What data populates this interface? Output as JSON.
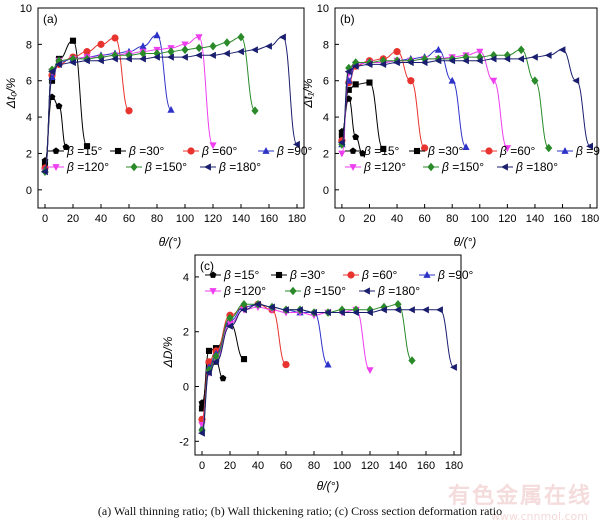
{
  "figure_caption": "(a)  Wall  thinning  ratio;  (b)  Wall  thickening  ratio; (c) Cross section deformation ratio",
  "watermark": "有色金属在线",
  "watermark_url": "www.cnnmol.com",
  "legend_labels": [
    "β =15°",
    "β =30°",
    "β =60°",
    "β =90°",
    "β =120°",
    "β =150°",
    "β =180°"
  ],
  "series_style": [
    {
      "color": "#000000",
      "marker": "pentagon"
    },
    {
      "color": "#000000",
      "marker": "square"
    },
    {
      "color": "#e8332e",
      "marker": "circle"
    },
    {
      "color": "#2e33c8",
      "marker": "triangle-up"
    },
    {
      "color": "#ee3ef0",
      "marker": "triangle-down"
    },
    {
      "color": "#2a8a2a",
      "marker": "diamond"
    },
    {
      "color": "#1a1e6e",
      "marker": "triangle-left"
    }
  ],
  "chart_data": [
    {
      "type": "line",
      "panel_label": "(a)",
      "xlabel": "θ/(°)",
      "ylabel": "Δt₀/%",
      "xlim": [
        -5,
        185
      ],
      "ylim": [
        -1,
        10
      ],
      "xticks": [
        0,
        20,
        40,
        60,
        80,
        100,
        120,
        140,
        160,
        180
      ],
      "yticks": [
        0,
        2,
        4,
        6,
        8,
        10
      ],
      "series": [
        {
          "name": "β =15°",
          "x": [
            0,
            5,
            10,
            15
          ],
          "y": [
            1.6,
            5.1,
            4.6,
            2.35
          ]
        },
        {
          "name": "β =30°",
          "x": [
            0,
            5,
            10,
            20,
            30
          ],
          "y": [
            1.4,
            6.0,
            7.2,
            8.2,
            2.4
          ]
        },
        {
          "name": "β =60°",
          "x": [
            0,
            5,
            10,
            20,
            30,
            40,
            50,
            60
          ],
          "y": [
            1.2,
            6.3,
            6.9,
            7.3,
            7.6,
            8.0,
            8.35,
            4.35
          ]
        },
        {
          "name": "β =90°",
          "x": [
            0,
            5,
            10,
            20,
            30,
            40,
            50,
            60,
            70,
            80,
            90
          ],
          "y": [
            1.1,
            6.2,
            7.0,
            7.2,
            7.3,
            7.4,
            7.5,
            7.6,
            7.9,
            8.5,
            4.4
          ]
        },
        {
          "name": "β =120°",
          "x": [
            0,
            5,
            10,
            20,
            30,
            40,
            50,
            60,
            70,
            80,
            90,
            100,
            110,
            120
          ],
          "y": [
            1.0,
            6.5,
            7.1,
            7.2,
            7.3,
            7.3,
            7.4,
            7.5,
            7.6,
            7.7,
            7.8,
            8.0,
            8.4,
            2.45
          ]
        },
        {
          "name": "β =150°",
          "x": [
            0,
            5,
            10,
            20,
            30,
            40,
            50,
            60,
            70,
            80,
            90,
            100,
            110,
            120,
            130,
            140,
            150
          ],
          "y": [
            1.0,
            6.6,
            7.1,
            7.2,
            7.2,
            7.3,
            7.4,
            7.4,
            7.5,
            7.5,
            7.6,
            7.7,
            7.8,
            7.9,
            8.1,
            8.4,
            4.35
          ]
        },
        {
          "name": "β =180°",
          "x": [
            0,
            5,
            10,
            20,
            30,
            40,
            50,
            60,
            70,
            80,
            90,
            100,
            110,
            120,
            130,
            140,
            150,
            160,
            170,
            180
          ],
          "y": [
            1.0,
            6.5,
            6.9,
            7.0,
            7.1,
            7.1,
            7.2,
            7.2,
            7.2,
            7.3,
            7.3,
            7.3,
            7.4,
            7.4,
            7.5,
            7.6,
            7.7,
            7.9,
            8.4,
            2.5
          ]
        }
      ]
    },
    {
      "type": "line",
      "panel_label": "(b)",
      "xlabel": "θ/(°)",
      "ylabel": "Δt₁/%",
      "xlim": [
        -5,
        185
      ],
      "ylim": [
        -1,
        10
      ],
      "xticks": [
        0,
        20,
        40,
        60,
        80,
        100,
        120,
        140,
        160,
        180
      ],
      "yticks": [
        0,
        2,
        4,
        6,
        8,
        10
      ],
      "series": [
        {
          "name": "β =15°",
          "x": [
            0,
            5,
            10,
            15
          ],
          "y": [
            3.2,
            5.0,
            2.9,
            2.0
          ]
        },
        {
          "name": "β =30°",
          "x": [
            0,
            5,
            10,
            20,
            30
          ],
          "y": [
            3.0,
            5.5,
            5.8,
            5.9,
            2.25
          ]
        },
        {
          "name": "β =60°",
          "x": [
            0,
            5,
            10,
            20,
            30,
            40,
            50,
            60
          ],
          "y": [
            2.7,
            5.9,
            6.8,
            7.1,
            7.2,
            7.6,
            6.0,
            2.3
          ]
        },
        {
          "name": "β =90°",
          "x": [
            0,
            5,
            10,
            20,
            30,
            40,
            50,
            60,
            70,
            80,
            90
          ],
          "y": [
            2.5,
            6.0,
            6.9,
            7.0,
            7.0,
            7.1,
            7.2,
            7.3,
            7.7,
            6.0,
            2.35
          ]
        },
        {
          "name": "β =120°",
          "x": [
            0,
            5,
            10,
            20,
            30,
            40,
            50,
            60,
            70,
            80,
            90,
            100,
            110,
            120
          ],
          "y": [
            2.0,
            6.4,
            6.9,
            7.0,
            7.0,
            7.1,
            7.1,
            7.2,
            7.2,
            7.3,
            7.4,
            7.6,
            6.0,
            2.3
          ]
        },
        {
          "name": "β =150°",
          "x": [
            0,
            5,
            10,
            20,
            30,
            40,
            50,
            60,
            70,
            80,
            90,
            100,
            110,
            120,
            130,
            140,
            150
          ],
          "y": [
            2.5,
            6.7,
            7.0,
            7.0,
            7.1,
            7.1,
            7.1,
            7.2,
            7.2,
            7.2,
            7.3,
            7.3,
            7.4,
            7.4,
            7.7,
            6.0,
            2.3
          ]
        },
        {
          "name": "β =180°",
          "x": [
            0,
            5,
            10,
            20,
            30,
            40,
            50,
            60,
            70,
            80,
            90,
            100,
            110,
            120,
            130,
            140,
            150,
            160,
            170,
            180
          ],
          "y": [
            2.6,
            6.5,
            6.8,
            6.9,
            6.9,
            7.0,
            7.0,
            7.0,
            7.1,
            7.1,
            7.1,
            7.1,
            7.2,
            7.2,
            7.2,
            7.3,
            7.4,
            7.7,
            6.0,
            2.4
          ]
        }
      ]
    },
    {
      "type": "line",
      "panel_label": "(c)",
      "xlabel": "θ/(°)",
      "ylabel": "ΔD/%",
      "xlim": [
        -5,
        185
      ],
      "ylim": [
        -2.5,
        4.8
      ],
      "xticks": [
        0,
        20,
        40,
        60,
        80,
        100,
        120,
        140,
        160,
        180
      ],
      "yticks": [
        -2,
        0,
        2,
        4
      ],
      "series": [
        {
          "name": "β =15°",
          "x": [
            0,
            5,
            10,
            15
          ],
          "y": [
            -0.6,
            0.8,
            0.9,
            0.3
          ]
        },
        {
          "name": "β =30°",
          "x": [
            0,
            5,
            10,
            20,
            30
          ],
          "y": [
            -0.8,
            1.3,
            1.4,
            2.3,
            1.0
          ]
        },
        {
          "name": "β =60°",
          "x": [
            0,
            5,
            10,
            20,
            30,
            40,
            50,
            60
          ],
          "y": [
            -1.2,
            0.9,
            1.3,
            2.6,
            2.9,
            3.0,
            2.8,
            0.8
          ]
        },
        {
          "name": "β =90°",
          "x": [
            0,
            5,
            10,
            20,
            30,
            40,
            50,
            60,
            70,
            80,
            90
          ],
          "y": [
            -1.5,
            0.7,
            1.2,
            2.4,
            2.9,
            3.0,
            2.9,
            2.8,
            2.7,
            2.7,
            0.8
          ]
        },
        {
          "name": "β =120°",
          "x": [
            0,
            5,
            10,
            20,
            30,
            40,
            50,
            60,
            70,
            80,
            90,
            100,
            110,
            120
          ],
          "y": [
            -1.4,
            0.5,
            1.0,
            2.3,
            2.8,
            2.9,
            2.8,
            2.7,
            2.7,
            2.6,
            2.7,
            2.7,
            2.8,
            0.6
          ]
        },
        {
          "name": "β =150°",
          "x": [
            0,
            5,
            10,
            20,
            30,
            40,
            50,
            60,
            70,
            80,
            90,
            100,
            110,
            120,
            130,
            140,
            150
          ],
          "y": [
            -1.6,
            0.6,
            1.1,
            2.5,
            3.0,
            3.0,
            2.9,
            2.8,
            2.8,
            2.7,
            2.7,
            2.8,
            2.8,
            2.8,
            2.9,
            3.0,
            0.95
          ]
        },
        {
          "name": "β =180°",
          "x": [
            0,
            5,
            10,
            20,
            30,
            40,
            50,
            60,
            70,
            80,
            90,
            100,
            110,
            120,
            130,
            140,
            150,
            160,
            170,
            180
          ],
          "y": [
            -1.7,
            0.5,
            0.9,
            2.2,
            2.8,
            3.0,
            2.9,
            2.8,
            2.8,
            2.7,
            2.7,
            2.7,
            2.7,
            2.7,
            2.8,
            2.8,
            2.8,
            2.8,
            2.8,
            0.7
          ]
        }
      ]
    }
  ]
}
